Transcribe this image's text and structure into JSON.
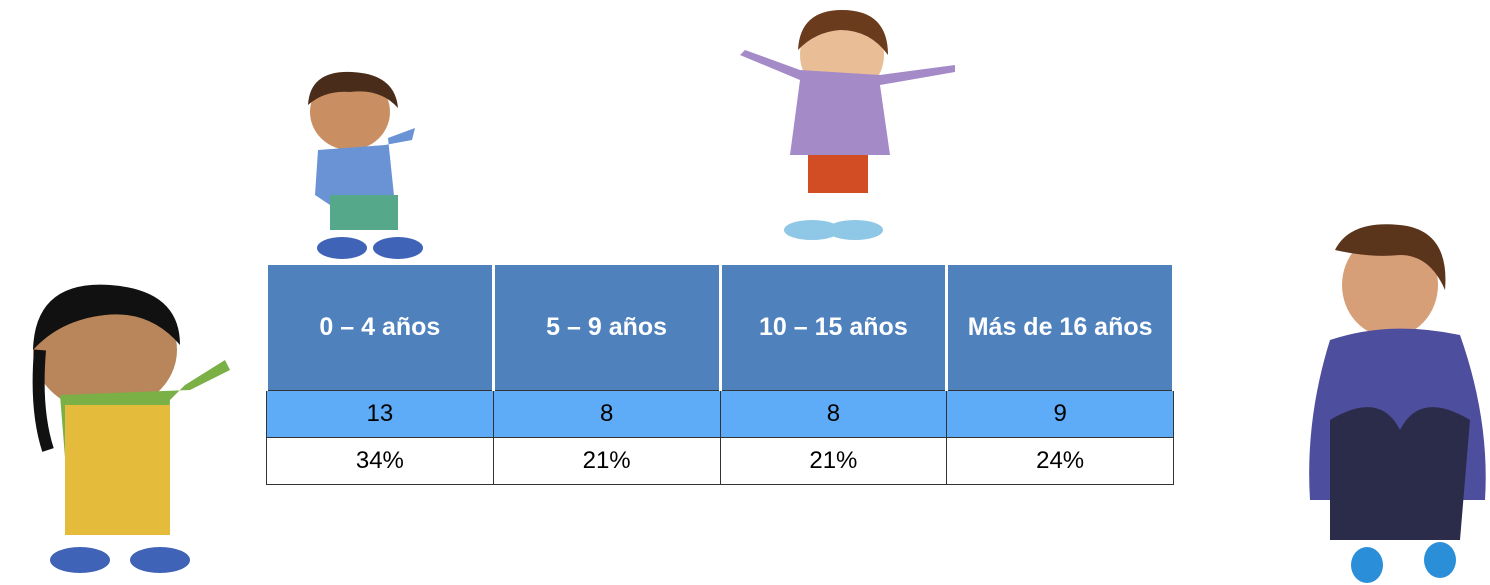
{
  "table": {
    "header": [
      "0 – 4 años",
      "5 – 9 años",
      "10 – 15 años",
      "Más de 16 años"
    ],
    "rows": [
      [
        13,
        8,
        8,
        9
      ],
      [
        "34%",
        "21%",
        "21%",
        "24%"
      ]
    ]
  }
}
